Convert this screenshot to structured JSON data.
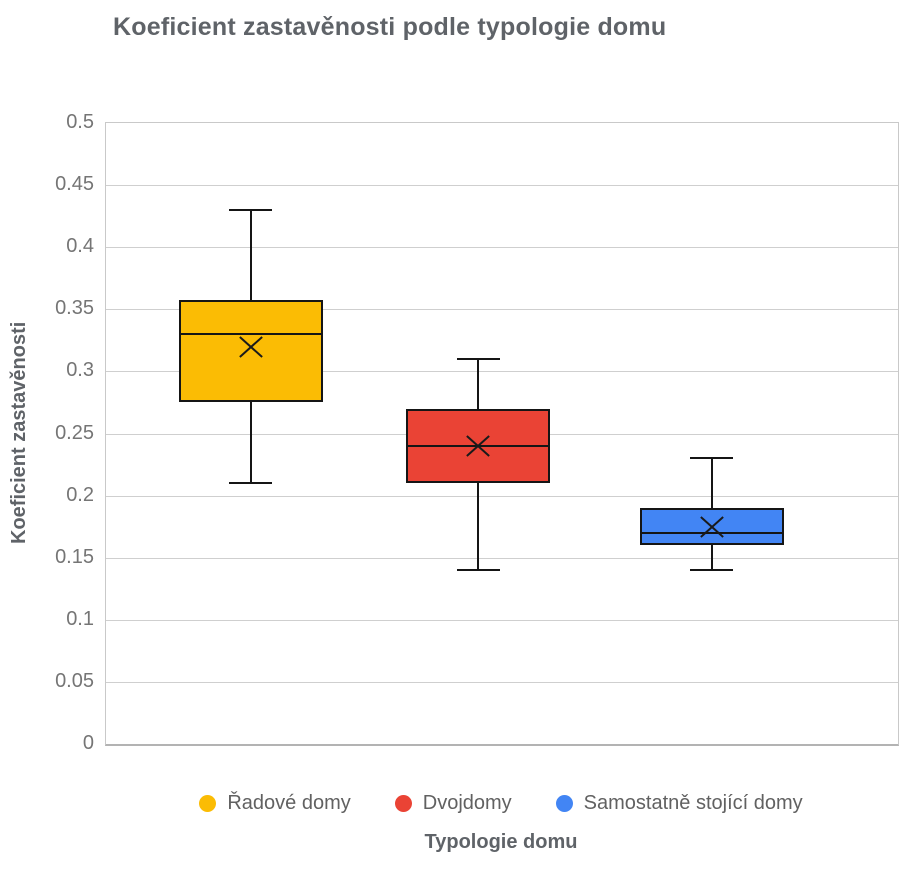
{
  "chart_data": {
    "type": "boxplot",
    "title": "Koeficient zastavěnosti podle typologie domu",
    "xlabel": "Typologie domu",
    "ylabel": "Koeficient zastavěnosti",
    "ylim": [
      0,
      0.5
    ],
    "ytick_step": 0.05,
    "yticks": [
      "0",
      "0.05",
      "0.1",
      "0.15",
      "0.2",
      "0.25",
      "0.3",
      "0.35",
      "0.4",
      "0.45",
      "0.5"
    ],
    "grid": true,
    "legend_position": "bottom",
    "box_width_frac": 0.182,
    "series": [
      {
        "name": "Řadové domy",
        "color": "#FBBC04",
        "min": 0.21,
        "q1": 0.275,
        "median": 0.33,
        "mean": 0.32,
        "q3": 0.3575,
        "max": 0.43,
        "center_frac": 0.183
      },
      {
        "name": "Dvojdomy",
        "color": "#EA4335",
        "min": 0.14,
        "q1": 0.21,
        "median": 0.24,
        "mean": 0.24,
        "q3": 0.27,
        "max": 0.31,
        "center_frac": 0.47
      },
      {
        "name": "Samostatně stojící domy",
        "color": "#4285F4",
        "min": 0.14,
        "q1": 0.16,
        "median": 0.17,
        "mean": 0.175,
        "q3": 0.19,
        "max": 0.23,
        "center_frac": 0.765
      }
    ],
    "colors": {
      "title_text": "#5f6368",
      "tick_text": "#757575",
      "legend_text": "#616161",
      "gridline": "#cfcfcf",
      "box_stroke": "#151515",
      "background": "#ffffff"
    }
  }
}
